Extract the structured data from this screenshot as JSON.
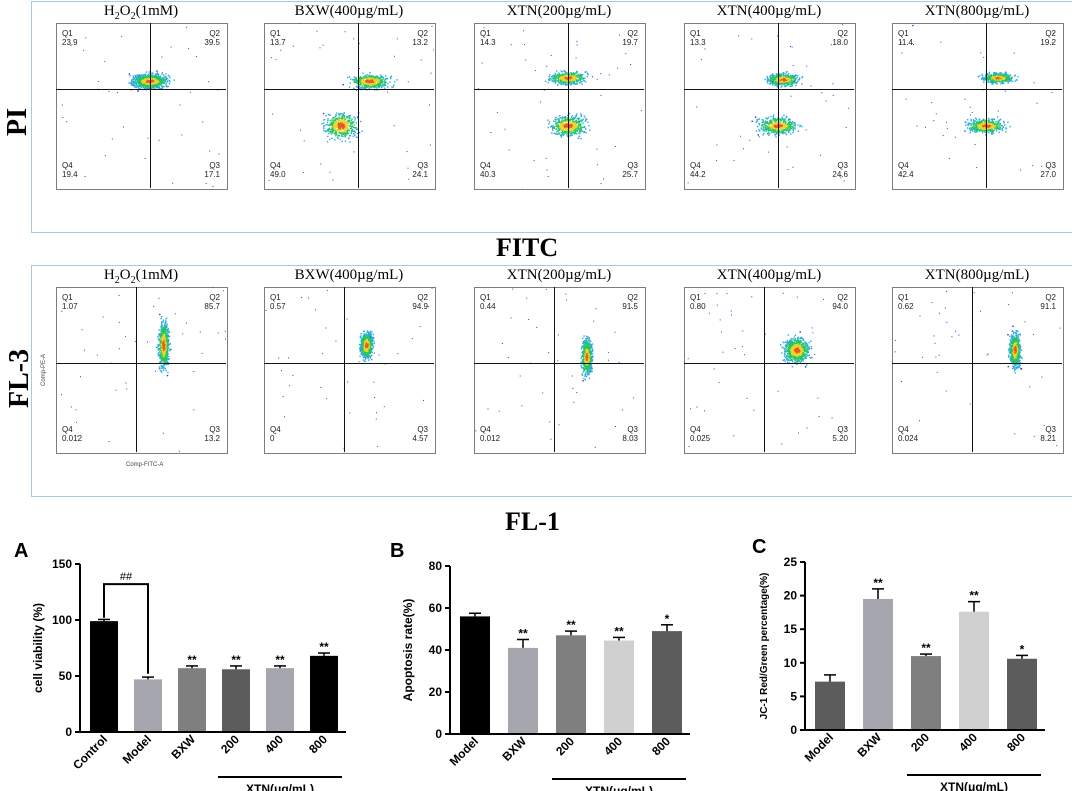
{
  "sections": {
    "pi_label": "PI",
    "fitc_label": "FITC",
    "fl3_label": "FL-3",
    "fl1_label": "FL-1"
  },
  "flow_row1": [
    {
      "title_pre": "H",
      "title_sub": "2",
      "title_mid": "O",
      "title_sub2": "2",
      "title_post": "(1mM)",
      "q1_name": "Q1",
      "q1": "23.9",
      "q2_name": "Q2",
      "q2": "39.5",
      "q3_name": "Q3",
      "q3": "17.1",
      "q4_name": "Q4",
      "q4": "19.4"
    },
    {
      "title": "BXW(400µg/mL)",
      "q1_name": "Q1",
      "q1": "13.7",
      "q2_name": "Q2",
      "q2": "13.2",
      "q3_name": "Q3",
      "q3": "24.1",
      "q4_name": "Q4",
      "q4": "49.0"
    },
    {
      "title": "XTN(200µg/mL)",
      "q1_name": "Q1",
      "q1": "14.3",
      "q2_name": "Q2",
      "q2": "19.7",
      "q3_name": "Q3",
      "q3": "25.7",
      "q4_name": "Q4",
      "q4": "40.3"
    },
    {
      "title": "XTN(400µg/mL)",
      "q1_name": "Q1",
      "q1": "13.3",
      "q2_name": "Q2",
      "q2": "18.0",
      "q3_name": "Q3",
      "q3": "24.6",
      "q4_name": "Q4",
      "q4": "44.2"
    },
    {
      "title": "XTN(800µg/mL)",
      "q1_name": "Q1",
      "q1": "11.4",
      "q2_name": "Q2",
      "q2": "19.2",
      "q3_name": "Q3",
      "q3": "27.0",
      "q4_name": "Q4",
      "q4": "42.4"
    }
  ],
  "flow_row2": [
    {
      "title_pre": "H",
      "title_sub": "2",
      "title_mid": "O",
      "title_sub2": "2",
      "title_post": "(1mM)",
      "q1_name": "Q1",
      "q1": "1.07",
      "q2_name": "Q2",
      "q2": "85.7",
      "q3_name": "Q3",
      "q3": "13.2",
      "q4_name": "Q4",
      "q4": "0.012",
      "ylab": "Comp-PE-A",
      "xlab": "Comp-FITC-A"
    },
    {
      "title": "BXW(400µg/mL)",
      "q1_name": "Q1",
      "q1": "0.57",
      "q2_name": "Q2",
      "q2": "94.9",
      "q3_name": "Q3",
      "q3": "4.57",
      "q4_name": "Q4",
      "q4": "0"
    },
    {
      "title": "XTN(200µg/mL)",
      "q1_name": "Q1",
      "q1": "0.44",
      "q2_name": "Q2",
      "q2": "91.5",
      "q3_name": "Q3",
      "q3": "8.03",
      "q4_name": "Q4",
      "q4": "0.012"
    },
    {
      "title": "XTN(400µg/mL)",
      "q1_name": "Q1",
      "q1": "0.80",
      "q2_name": "Q2",
      "q2": "94.0",
      "q3_name": "Q3",
      "q3": "5.20",
      "q4_name": "Q4",
      "q4": "0.025"
    },
    {
      "title": "XTN(800µg/mL)",
      "q1_name": "Q1",
      "q1": "0.62",
      "q2_name": "Q2",
      "q2": "91.1",
      "q3_name": "Q3",
      "q3": "8.21",
      "q4_name": "Q4",
      "q4": "0.024"
    }
  ],
  "chart_data": [
    {
      "panel": "A",
      "type": "bar",
      "ylabel": "cell viability (%)",
      "ylim": [
        0,
        150
      ],
      "yticks": [
        0,
        50,
        100,
        150
      ],
      "categories": [
        "Control",
        "Model",
        "BXW",
        "200",
        "400",
        "800"
      ],
      "values": [
        99,
        47,
        57,
        56,
        57,
        68
      ],
      "errors": [
        1.5,
        2,
        2,
        3,
        2,
        2.5
      ],
      "colors": [
        "#000000",
        "#a6a6ae",
        "#7f7f7f",
        "#5c5c5c",
        "#a6a6ae",
        "#000000"
      ],
      "significance": [
        "",
        "",
        "**",
        "**",
        "**",
        "**"
      ],
      "bracket_label": "##",
      "group_label": "XTN(μg/mL)"
    },
    {
      "panel": "B",
      "type": "bar",
      "ylabel": "Apoptosis rate(%)",
      "ylim": [
        0,
        80
      ],
      "yticks": [
        0,
        20,
        40,
        60,
        80
      ],
      "categories": [
        "Model",
        "BXW",
        "200",
        "400",
        "800"
      ],
      "values": [
        56,
        41,
        47,
        44.5,
        49
      ],
      "errors": [
        1.5,
        4,
        2,
        1.5,
        3
      ],
      "colors": [
        "#000000",
        "#a6a6ae",
        "#7f7f7f",
        "#d0d0d0",
        "#5c5c5c"
      ],
      "significance": [
        "",
        "**",
        "**",
        "**",
        "*"
      ],
      "group_label": "XTN(μg/mL)"
    },
    {
      "panel": "C",
      "type": "bar",
      "ylabel": "JC-1 Red/Green percentage(%)",
      "ylim": [
        0,
        25
      ],
      "yticks": [
        0,
        5,
        10,
        15,
        20,
        25
      ],
      "categories": [
        "Model",
        "BXW",
        "200",
        "400",
        "800"
      ],
      "values": [
        7.2,
        19.5,
        11,
        17.6,
        10.6
      ],
      "errors": [
        1,
        1.5,
        0.3,
        1.5,
        0.5
      ],
      "colors": [
        "#5c5c5c",
        "#a6a6ae",
        "#7f7f7f",
        "#d0d0d0",
        "#5c5c5c"
      ],
      "significance": [
        "",
        "**",
        "**",
        "**",
        "*"
      ],
      "group_label": "XTN(μg/mL)"
    }
  ]
}
